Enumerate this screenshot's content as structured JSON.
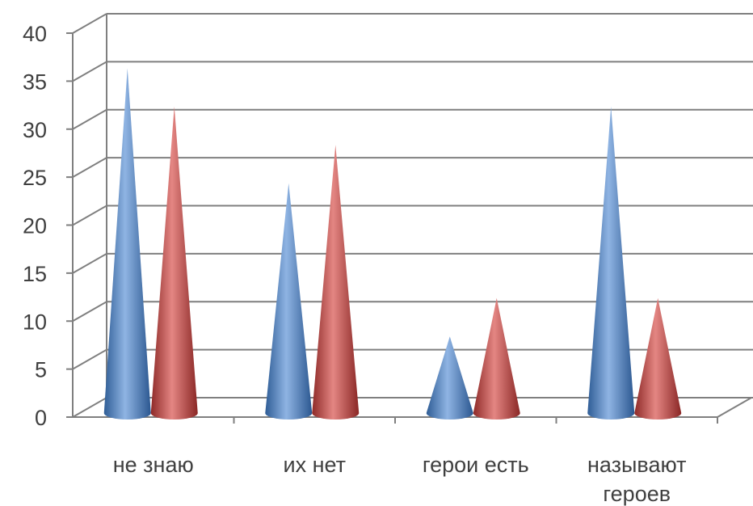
{
  "chart_data": {
    "type": "bar",
    "style": "3d-cone",
    "categories": [
      "не знаю",
      "их нет",
      "герои есть",
      "называют\nгероев"
    ],
    "series": [
      {
        "values": [
          36,
          24,
          8,
          32
        ],
        "color": "#4F81BD"
      },
      {
        "values": [
          32,
          28,
          12,
          12
        ],
        "color": "#C0504D"
      }
    ],
    "ylim": [
      0,
      40
    ],
    "yticks": [
      0,
      5,
      10,
      15,
      20,
      25,
      30,
      35,
      40
    ],
    "grid": true,
    "legend": "none"
  }
}
